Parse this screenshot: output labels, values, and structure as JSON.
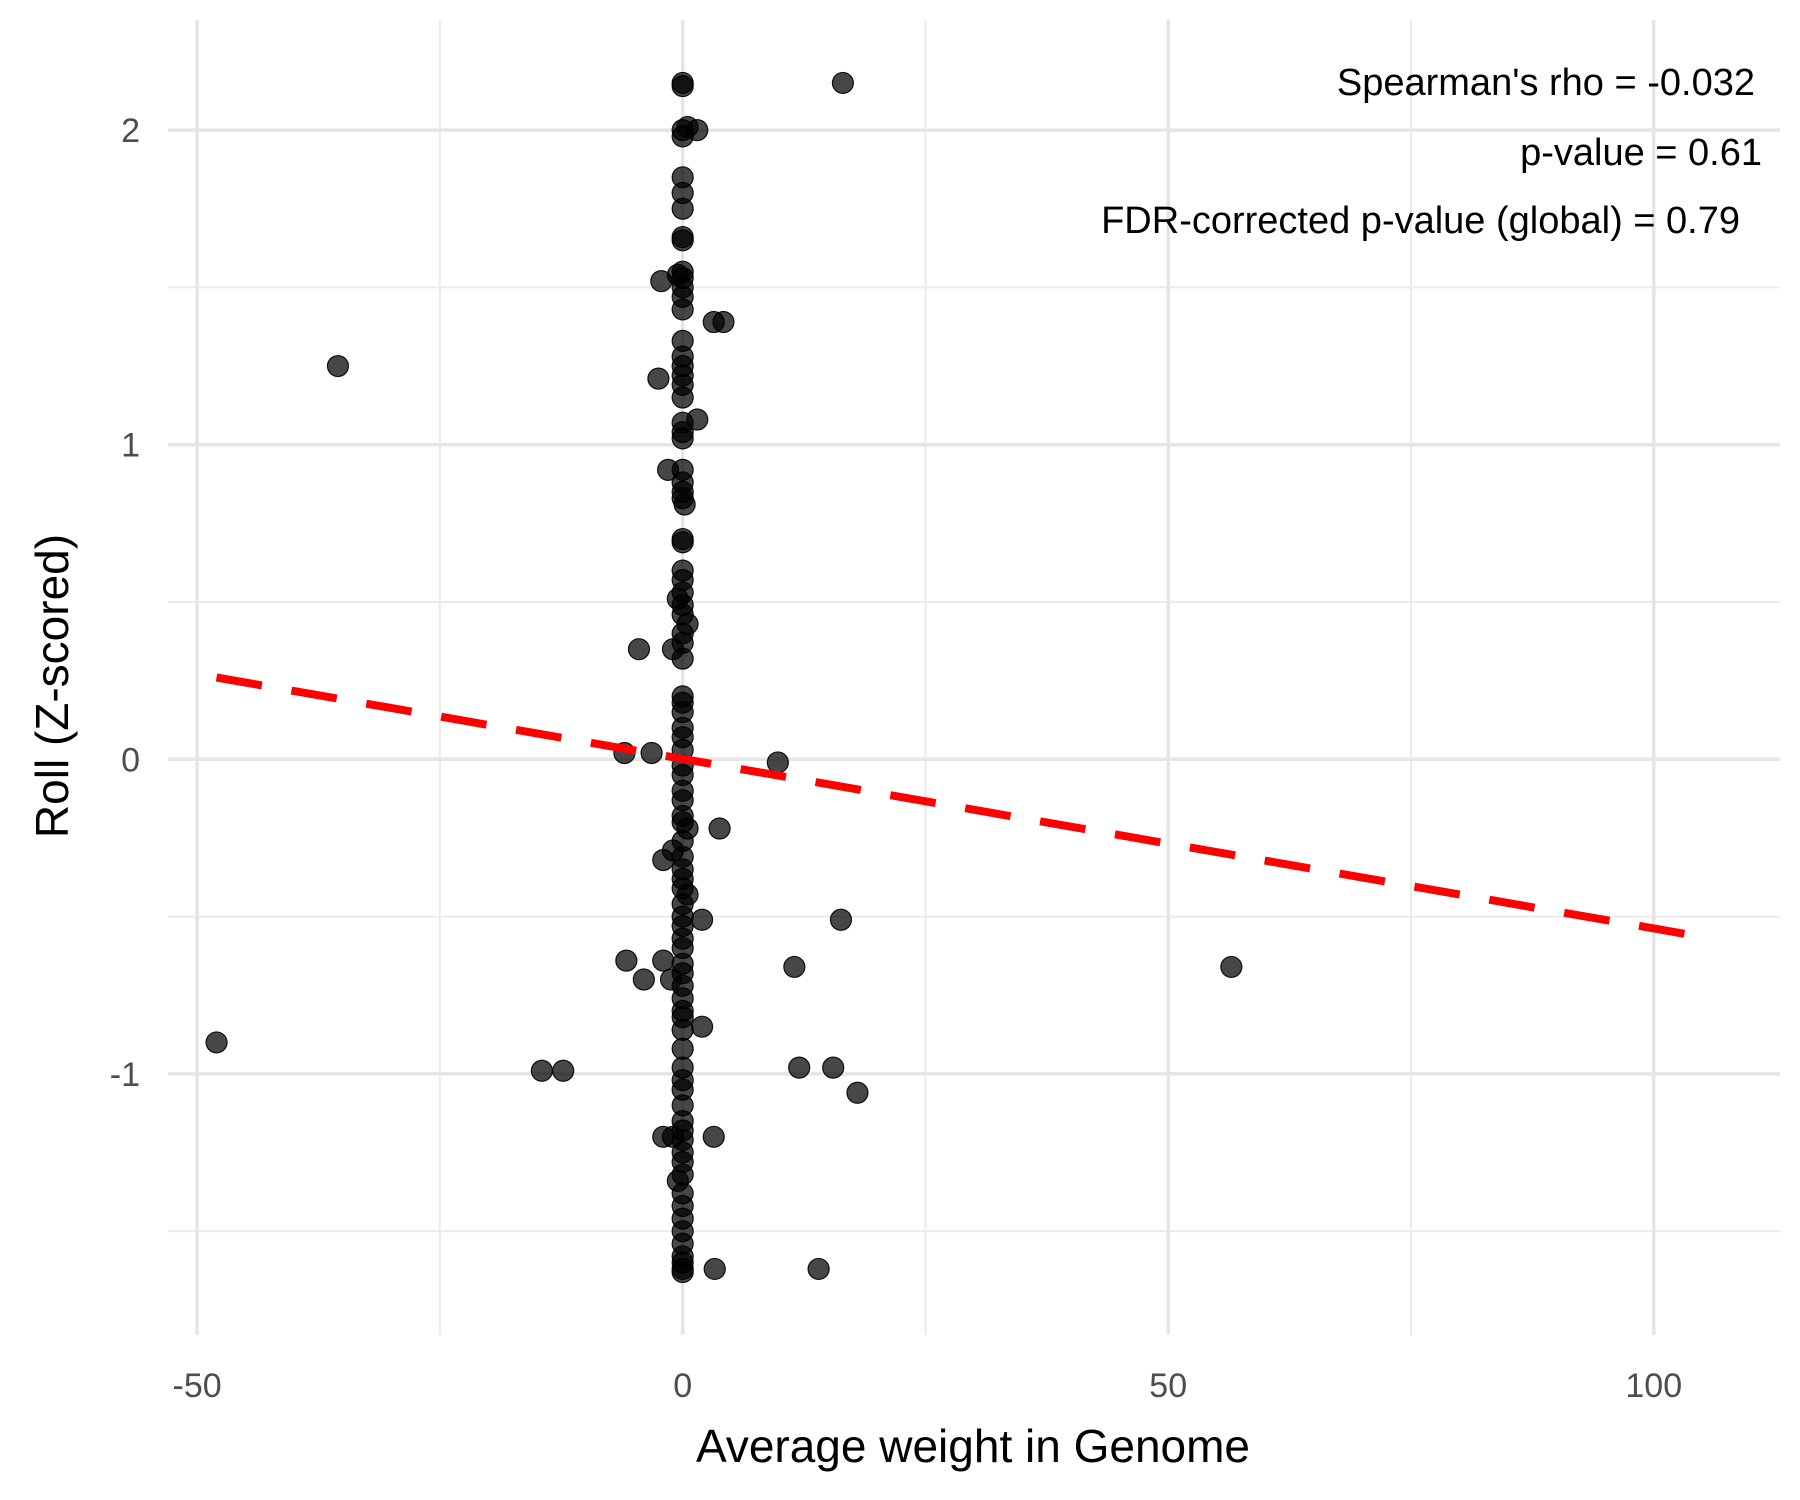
{
  "chart_data": {
    "type": "scatter",
    "xlabel": "Average weight in Genome",
    "ylabel": "Roll (Z-scored)",
    "xlim": [
      -53,
      113
    ],
    "ylim": [
      -1.83,
      2.35
    ],
    "x_ticks": [
      -50,
      0,
      50,
      100
    ],
    "x_tick_labels": [
      "-50",
      "0",
      "50",
      "100"
    ],
    "y_ticks": [
      -1,
      0,
      1,
      2
    ],
    "y_tick_labels": [
      "-1",
      "0",
      "1",
      "2"
    ],
    "x_minor_ticks": [
      -25,
      25,
      75
    ],
    "y_minor_ticks": [
      -1.5,
      -0.5,
      0.5,
      1.5
    ],
    "grid": true,
    "annotations": [
      "Spearman's rho = -0.032",
      "p-value = 0.61",
      "FDR-corrected p-value (global) = 0.79"
    ],
    "point_color": "#000000",
    "point_opacity": 0.72,
    "trend_line": {
      "style": "dashed",
      "color": "#ff0000",
      "x": [
        -48,
        106
      ],
      "y": [
        0.26,
        -0.57
      ]
    },
    "points": [
      {
        "x": 0,
        "y": 2.15
      },
      {
        "x": 0,
        "y": 2.14
      },
      {
        "x": 16.5,
        "y": 2.15
      },
      {
        "x": 0,
        "y": 2.0
      },
      {
        "x": 1.5,
        "y": 2.0
      },
      {
        "x": 0,
        "y": 1.98
      },
      {
        "x": 0.5,
        "y": 2.01
      },
      {
        "x": 0,
        "y": 1.85
      },
      {
        "x": 0,
        "y": 1.8
      },
      {
        "x": 0,
        "y": 1.75
      },
      {
        "x": 0,
        "y": 1.66
      },
      {
        "x": 0,
        "y": 1.65
      },
      {
        "x": -2.2,
        "y": 1.52
      },
      {
        "x": 0,
        "y": 1.55
      },
      {
        "x": 0,
        "y": 1.53
      },
      {
        "x": -0.5,
        "y": 1.54
      },
      {
        "x": 0,
        "y": 1.5
      },
      {
        "x": 0,
        "y": 1.47
      },
      {
        "x": 0,
        "y": 1.43
      },
      {
        "x": 3.2,
        "y": 1.39
      },
      {
        "x": 4.2,
        "y": 1.39
      },
      {
        "x": 0,
        "y": 1.33
      },
      {
        "x": 0,
        "y": 1.28
      },
      {
        "x": 0,
        "y": 1.25
      },
      {
        "x": 0,
        "y": 1.22
      },
      {
        "x": -2.5,
        "y": 1.21
      },
      {
        "x": 0,
        "y": 1.19
      },
      {
        "x": 0,
        "y": 1.15
      },
      {
        "x": -35.5,
        "y": 1.25
      },
      {
        "x": 1.5,
        "y": 1.08
      },
      {
        "x": 0,
        "y": 1.07
      },
      {
        "x": 0,
        "y": 1.04
      },
      {
        "x": 0,
        "y": 1.02
      },
      {
        "x": -1.5,
        "y": 0.92
      },
      {
        "x": 0,
        "y": 0.92
      },
      {
        "x": 0,
        "y": 0.88
      },
      {
        "x": 0,
        "y": 0.85
      },
      {
        "x": 0,
        "y": 0.83
      },
      {
        "x": 0.2,
        "y": 0.81
      },
      {
        "x": 0,
        "y": 0.7
      },
      {
        "x": 0,
        "y": 0.69
      },
      {
        "x": 0,
        "y": 0.6
      },
      {
        "x": 0,
        "y": 0.57
      },
      {
        "x": 0,
        "y": 0.53
      },
      {
        "x": -0.5,
        "y": 0.51
      },
      {
        "x": 0,
        "y": 0.49
      },
      {
        "x": 0,
        "y": 0.46
      },
      {
        "x": 0.5,
        "y": 0.43
      },
      {
        "x": 0,
        "y": 0.4
      },
      {
        "x": 0,
        "y": 0.37
      },
      {
        "x": -4.5,
        "y": 0.35
      },
      {
        "x": -1.0,
        "y": 0.35
      },
      {
        "x": 0,
        "y": 0.32
      },
      {
        "x": 0,
        "y": 0.2
      },
      {
        "x": 0,
        "y": 0.18
      },
      {
        "x": 0,
        "y": 0.15
      },
      {
        "x": 0,
        "y": 0.1
      },
      {
        "x": 0,
        "y": 0.07
      },
      {
        "x": 0,
        "y": 0.03
      },
      {
        "x": -6.0,
        "y": 0.02
      },
      {
        "x": -3.2,
        "y": 0.02
      },
      {
        "x": 9.8,
        "y": -0.01
      },
      {
        "x": 0,
        "y": -0.02
      },
      {
        "x": 0,
        "y": -0.05
      },
      {
        "x": 0,
        "y": -0.1
      },
      {
        "x": 0,
        "y": -0.13
      },
      {
        "x": 0,
        "y": -0.18
      },
      {
        "x": 0,
        "y": -0.2
      },
      {
        "x": 0.5,
        "y": -0.22
      },
      {
        "x": 3.8,
        "y": -0.22
      },
      {
        "x": 0,
        "y": -0.26
      },
      {
        "x": -1.0,
        "y": -0.29
      },
      {
        "x": -2.0,
        "y": -0.32
      },
      {
        "x": 0,
        "y": -0.31
      },
      {
        "x": 0,
        "y": -0.35
      },
      {
        "x": 0,
        "y": -0.38
      },
      {
        "x": 0,
        "y": -0.41
      },
      {
        "x": 0.5,
        "y": -0.43
      },
      {
        "x": 0,
        "y": -0.46
      },
      {
        "x": 0,
        "y": -0.5
      },
      {
        "x": 2.0,
        "y": -0.51
      },
      {
        "x": 16.3,
        "y": -0.51
      },
      {
        "x": 0,
        "y": -0.53
      },
      {
        "x": 0,
        "y": -0.57
      },
      {
        "x": 0,
        "y": -0.6
      },
      {
        "x": -5.8,
        "y": -0.64
      },
      {
        "x": -2.0,
        "y": -0.64
      },
      {
        "x": 0,
        "y": -0.65
      },
      {
        "x": 0,
        "y": -0.68
      },
      {
        "x": 11.5,
        "y": -0.66
      },
      {
        "x": 56.5,
        "y": -0.66
      },
      {
        "x": -4.0,
        "y": -0.7
      },
      {
        "x": -1.2,
        "y": -0.7
      },
      {
        "x": 0,
        "y": -0.72
      },
      {
        "x": 0,
        "y": -0.76
      },
      {
        "x": 0,
        "y": -0.8
      },
      {
        "x": 0,
        "y": -0.82
      },
      {
        "x": 2.0,
        "y": -0.85
      },
      {
        "x": 0,
        "y": -0.86
      },
      {
        "x": 0,
        "y": -0.92
      },
      {
        "x": -48.0,
        "y": -0.9
      },
      {
        "x": -14.5,
        "y": -0.99
      },
      {
        "x": -12.3,
        "y": -0.99
      },
      {
        "x": 12.0,
        "y": -0.98
      },
      {
        "x": 15.5,
        "y": -0.98
      },
      {
        "x": 0,
        "y": -0.98
      },
      {
        "x": 0,
        "y": -1.02
      },
      {
        "x": 0,
        "y": -1.05
      },
      {
        "x": 18.0,
        "y": -1.06
      },
      {
        "x": 0,
        "y": -1.1
      },
      {
        "x": 0,
        "y": -1.15
      },
      {
        "x": 0,
        "y": -1.18
      },
      {
        "x": -2.0,
        "y": -1.2
      },
      {
        "x": -1.0,
        "y": -1.2
      },
      {
        "x": 0,
        "y": -1.21
      },
      {
        "x": 3.2,
        "y": -1.2
      },
      {
        "x": 0,
        "y": -1.25
      },
      {
        "x": 0,
        "y": -1.28
      },
      {
        "x": 0,
        "y": -1.32
      },
      {
        "x": -0.5,
        "y": -1.34
      },
      {
        "x": 0,
        "y": -1.38
      },
      {
        "x": 0,
        "y": -1.42
      },
      {
        "x": 0,
        "y": -1.46
      },
      {
        "x": 0,
        "y": -1.5
      },
      {
        "x": 0,
        "y": -1.54
      },
      {
        "x": 0,
        "y": -1.58
      },
      {
        "x": 0,
        "y": -1.6
      },
      {
        "x": 0,
        "y": -1.62
      },
      {
        "x": 0,
        "y": -1.63
      },
      {
        "x": 3.3,
        "y": -1.62
      },
      {
        "x": 14.0,
        "y": -1.62
      }
    ]
  }
}
